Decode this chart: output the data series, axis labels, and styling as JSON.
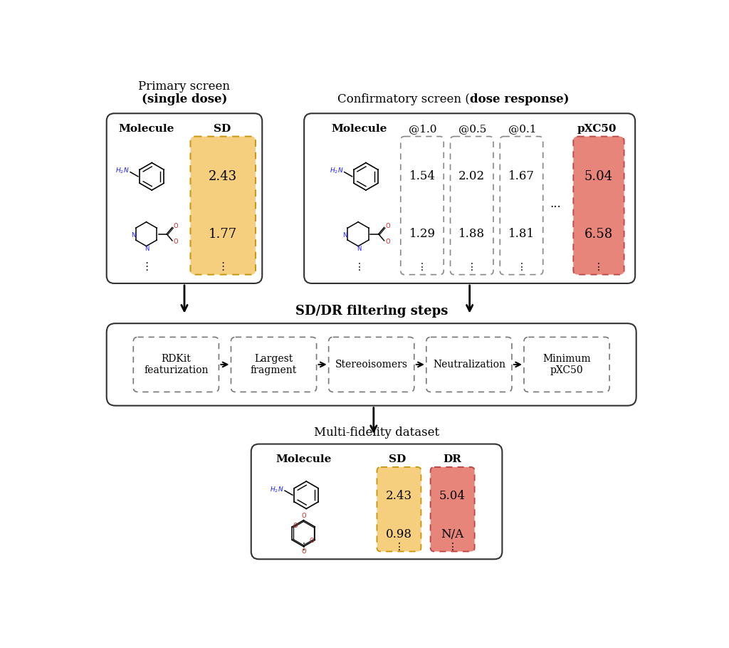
{
  "bg_color": "#ffffff",
  "sd_color": "#f5ce7e",
  "dr_color": "#e8857a",
  "primary_screen_title_line1": "Primary screen",
  "primary_screen_title_line2": "(single dose)",
  "confirmatory_screen_title_normal": "Confirmatory screen (",
  "confirmatory_screen_title_bold": "dose response",
  "confirmatory_screen_title_end": ")",
  "filtering_title": "SD/DR filtering steps",
  "multifidelity_title": "Multi-fidelity dataset",
  "filter_steps": [
    "RDKit\nfeaturization",
    "Largest\nfragment",
    "Stereoisomers",
    "Neutralization",
    "Minimum\npXC50"
  ],
  "primary_mol1_val": "2.43",
  "primary_mol2_val": "1.77",
  "conf_mol1_at1": "1.54",
  "conf_mol1_at2": "2.02",
  "conf_mol1_at3": "1.67",
  "conf_mol1_pxc": "5.04",
  "conf_mol2_at1": "1.29",
  "conf_mol2_at2": "1.88",
  "conf_mol2_at3": "1.81",
  "conf_mol2_pxc": "6.58",
  "mf_mol1_sd": "2.43",
  "mf_mol1_dr": "5.04",
  "mf_mol2_sd": "0.98",
  "mf_mol2_dr": "N/A",
  "font_family": "serif"
}
